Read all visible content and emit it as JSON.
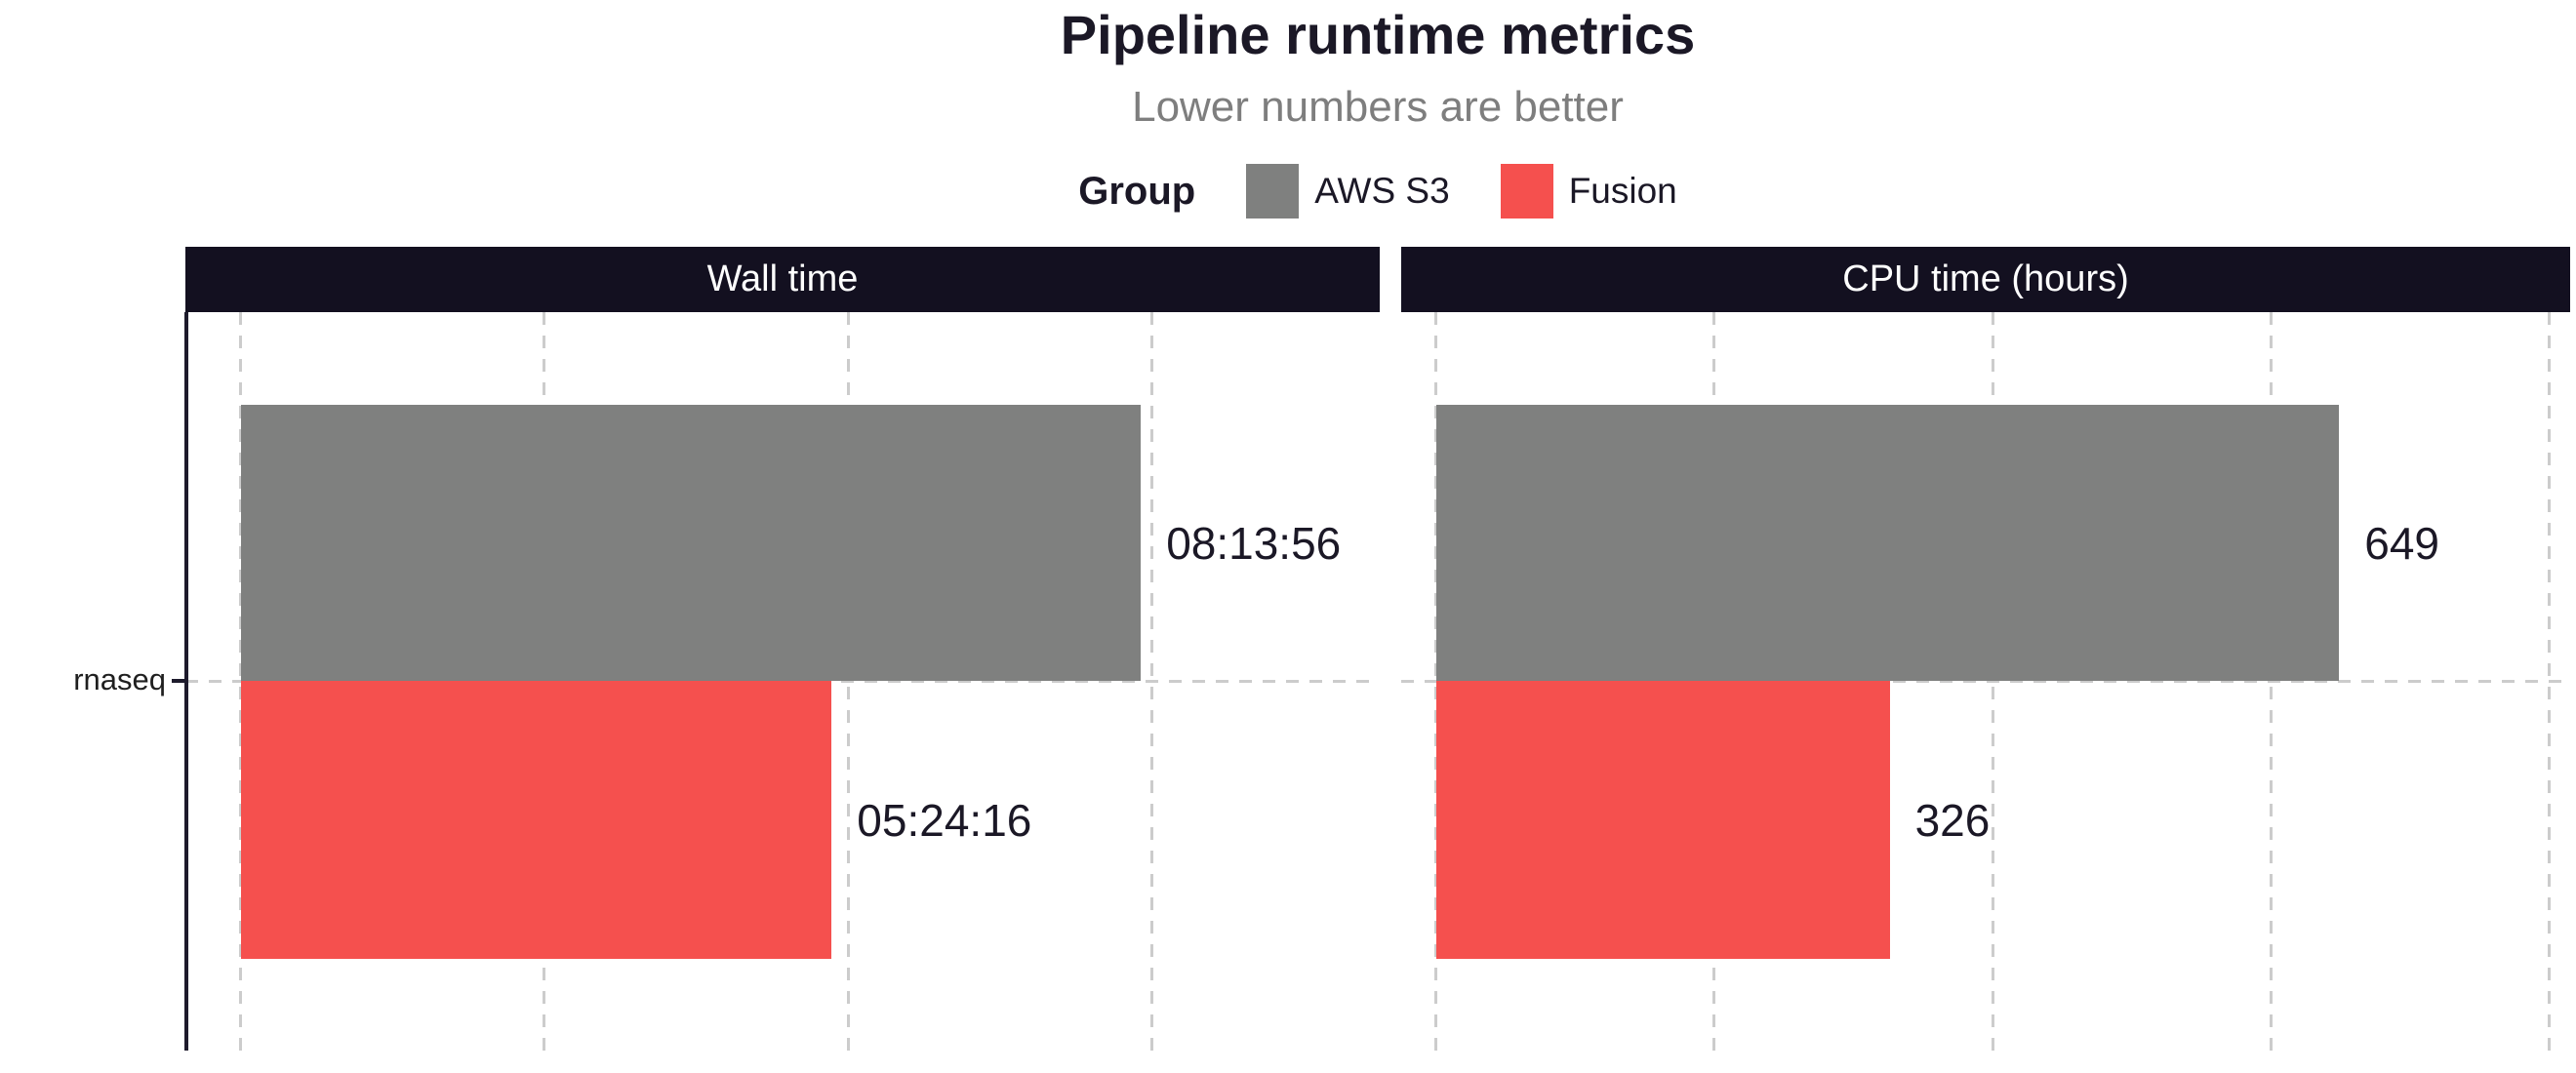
{
  "header": {
    "title": "Pipeline runtime metrics",
    "subtitle": "Lower numbers are better"
  },
  "legend": {
    "title": "Group",
    "items": [
      {
        "label": "AWS S3",
        "color": "#7f807f"
      },
      {
        "label": "Fusion",
        "color": "#f5504e"
      }
    ]
  },
  "y_axis": {
    "category_label": "rnaseq"
  },
  "chart_data": {
    "type": "bar",
    "orientation": "horizontal",
    "title": "Pipeline runtime metrics",
    "subtitle": "Lower numbers are better",
    "legend_title": "Group",
    "legend_position": "top",
    "categories": [
      "rnaseq"
    ],
    "grid": "dashed",
    "x_axis_tick_labels_visible": false,
    "facets": [
      {
        "title": "Wall time",
        "unit": "hh:mm:ss",
        "xlim": [
          -1820,
          37500
        ],
        "gridline_values": [
          0,
          10000,
          20000,
          30000
        ],
        "series": [
          {
            "name": "AWS S3",
            "value": 29636,
            "label": "08:13:56",
            "color": "#7f807f"
          },
          {
            "name": "Fusion",
            "value": 19456,
            "label": "05:24:16",
            "color": "#f5504e"
          }
        ]
      },
      {
        "title": "CPU time (hours)",
        "unit": "hours",
        "xlim": [
          -25,
          815
        ],
        "gridline_values": [
          0,
          200,
          400,
          600,
          800
        ],
        "series": [
          {
            "name": "AWS S3",
            "value": 649,
            "label": "649",
            "color": "#7f807f"
          },
          {
            "name": "Fusion",
            "value": 326,
            "label": "326",
            "color": "#f5504e"
          }
        ]
      }
    ],
    "colors": {
      "aws_s3": "#7f807f",
      "fusion": "#f5504e",
      "strip_background": "#131020"
    }
  }
}
